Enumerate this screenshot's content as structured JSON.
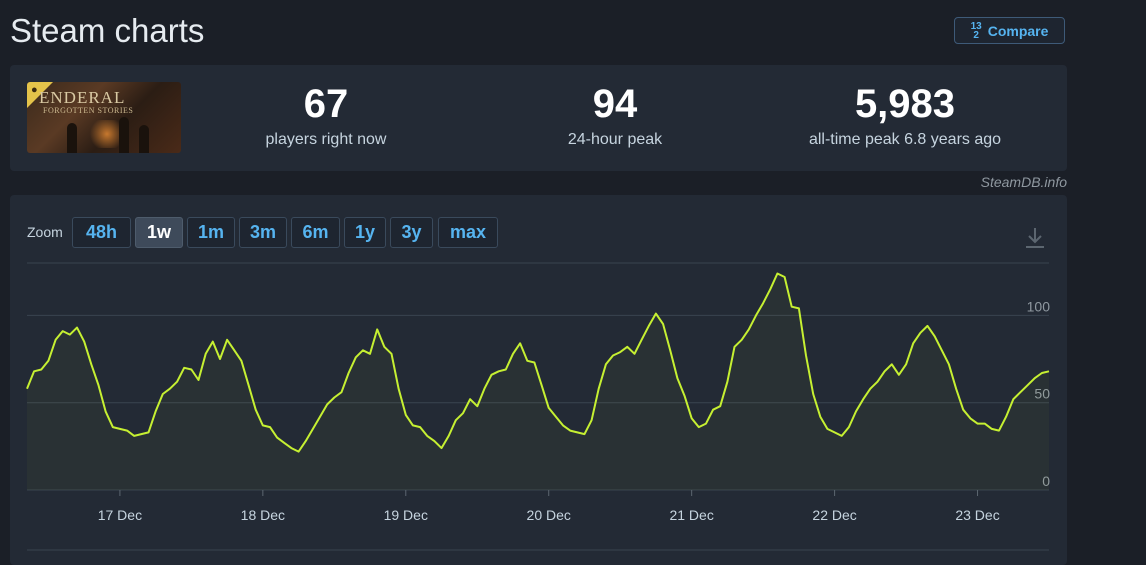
{
  "page_title": "Steam charts",
  "compare": {
    "label": "Compare",
    "icon": "fraction-icon",
    "icon_text_top": "1",
    "icon_text_mid": "3",
    "icon_text_bot": "2"
  },
  "game": {
    "logo_text": "ENDERAL",
    "logo_sub": "FORGOTTEN STORIES"
  },
  "stats": [
    {
      "value": "67",
      "label": "players right now"
    },
    {
      "value": "94",
      "label": "24-hour peak"
    },
    {
      "value": "5,983",
      "label": "all-time peak 6.8 years ago"
    }
  ],
  "watermark": "SteamDB.info",
  "zoom": {
    "label": "Zoom",
    "options": [
      "48h",
      "1w",
      "1m",
      "3m",
      "6m",
      "1y",
      "3y",
      "max"
    ],
    "selected": "1w"
  },
  "colors": {
    "line": "#c6f032",
    "accent": "#56b4f0",
    "background": "#1b1f27",
    "panel": "#232a35"
  },
  "chart_data": {
    "type": "line",
    "title": "",
    "xlabel": "",
    "ylabel": "",
    "ylim": [
      0,
      130
    ],
    "y_ticks": [
      {
        "value": 0,
        "label": "0"
      },
      {
        "value": 50,
        "label": "50"
      },
      {
        "value": 100,
        "label": "100"
      }
    ],
    "x_ticks": [
      {
        "label": "17 Dec",
        "x": 1
      },
      {
        "label": "18 Dec",
        "x": 2
      },
      {
        "label": "19 Dec",
        "x": 3
      },
      {
        "label": "20 Dec",
        "x": 4
      },
      {
        "label": "21 Dec",
        "x": 5
      },
      {
        "label": "22 Dec",
        "x": 6
      },
      {
        "label": "23 Dec",
        "x": 7
      }
    ],
    "xlim": [
      0.35,
      7.5
    ],
    "grid": true,
    "series": [
      {
        "values": [
          [
            0.35,
            58
          ],
          [
            0.4,
            68
          ],
          [
            0.45,
            69
          ],
          [
            0.5,
            74
          ],
          [
            0.55,
            86
          ],
          [
            0.6,
            91
          ],
          [
            0.65,
            89
          ],
          [
            0.7,
            93
          ],
          [
            0.75,
            85
          ],
          [
            0.8,
            72
          ],
          [
            0.85,
            60
          ],
          [
            0.9,
            45
          ],
          [
            0.95,
            36
          ],
          [
            1.0,
            35
          ],
          [
            1.05,
            34
          ],
          [
            1.1,
            31
          ],
          [
            1.15,
            32
          ],
          [
            1.2,
            33
          ],
          [
            1.25,
            45
          ],
          [
            1.3,
            55
          ],
          [
            1.35,
            58
          ],
          [
            1.4,
            62
          ],
          [
            1.45,
            70
          ],
          [
            1.5,
            69
          ],
          [
            1.55,
            63
          ],
          [
            1.6,
            78
          ],
          [
            1.65,
            85
          ],
          [
            1.7,
            75
          ],
          [
            1.75,
            86
          ],
          [
            1.8,
            80
          ],
          [
            1.85,
            74
          ],
          [
            1.9,
            60
          ],
          [
            1.95,
            46
          ],
          [
            2.0,
            37
          ],
          [
            2.05,
            36
          ],
          [
            2.1,
            30
          ],
          [
            2.15,
            27
          ],
          [
            2.2,
            24
          ],
          [
            2.25,
            22
          ],
          [
            2.3,
            28
          ],
          [
            2.35,
            35
          ],
          [
            2.4,
            42
          ],
          [
            2.45,
            49
          ],
          [
            2.5,
            53
          ],
          [
            2.55,
            56
          ],
          [
            2.6,
            67
          ],
          [
            2.65,
            76
          ],
          [
            2.7,
            80
          ],
          [
            2.75,
            78
          ],
          [
            2.8,
            92
          ],
          [
            2.85,
            82
          ],
          [
            2.9,
            78
          ],
          [
            2.95,
            58
          ],
          [
            3.0,
            43
          ],
          [
            3.05,
            37
          ],
          [
            3.1,
            36
          ],
          [
            3.15,
            31
          ],
          [
            3.2,
            28
          ],
          [
            3.25,
            24
          ],
          [
            3.3,
            31
          ],
          [
            3.35,
            40
          ],
          [
            3.4,
            44
          ],
          [
            3.45,
            52
          ],
          [
            3.5,
            48
          ],
          [
            3.55,
            58
          ],
          [
            3.6,
            66
          ],
          [
            3.65,
            68
          ],
          [
            3.7,
            69
          ],
          [
            3.75,
            78
          ],
          [
            3.8,
            84
          ],
          [
            3.85,
            74
          ],
          [
            3.9,
            73
          ],
          [
            3.95,
            60
          ],
          [
            4.0,
            47
          ],
          [
            4.05,
            42
          ],
          [
            4.1,
            37
          ],
          [
            4.15,
            34
          ],
          [
            4.2,
            33
          ],
          [
            4.25,
            32
          ],
          [
            4.3,
            40
          ],
          [
            4.35,
            58
          ],
          [
            4.4,
            72
          ],
          [
            4.45,
            77
          ],
          [
            4.5,
            79
          ],
          [
            4.55,
            82
          ],
          [
            4.6,
            78
          ],
          [
            4.65,
            86
          ],
          [
            4.7,
            94
          ],
          [
            4.75,
            101
          ],
          [
            4.8,
            95
          ],
          [
            4.85,
            80
          ],
          [
            4.9,
            64
          ],
          [
            4.95,
            54
          ],
          [
            5.0,
            41
          ],
          [
            5.05,
            36
          ],
          [
            5.1,
            38
          ],
          [
            5.15,
            46
          ],
          [
            5.2,
            48
          ],
          [
            5.25,
            62
          ],
          [
            5.3,
            82
          ],
          [
            5.35,
            86
          ],
          [
            5.4,
            92
          ],
          [
            5.45,
            100
          ],
          [
            5.5,
            107
          ],
          [
            5.55,
            115
          ],
          [
            5.6,
            124
          ],
          [
            5.65,
            122
          ],
          [
            5.7,
            105
          ],
          [
            5.75,
            104
          ],
          [
            5.8,
            77
          ],
          [
            5.85,
            55
          ],
          [
            5.9,
            42
          ],
          [
            5.95,
            35
          ],
          [
            6.0,
            33
          ],
          [
            6.05,
            31
          ],
          [
            6.1,
            36
          ],
          [
            6.15,
            45
          ],
          [
            6.2,
            52
          ],
          [
            6.25,
            58
          ],
          [
            6.3,
            62
          ],
          [
            6.35,
            68
          ],
          [
            6.4,
            72
          ],
          [
            6.45,
            66
          ],
          [
            6.5,
            72
          ],
          [
            6.55,
            84
          ],
          [
            6.6,
            90
          ],
          [
            6.65,
            94
          ],
          [
            6.7,
            88
          ],
          [
            6.75,
            80
          ],
          [
            6.8,
            72
          ],
          [
            6.85,
            58
          ],
          [
            6.9,
            46
          ],
          [
            6.95,
            41
          ],
          [
            7.0,
            38
          ],
          [
            7.05,
            38
          ],
          [
            7.1,
            35
          ],
          [
            7.15,
            34
          ],
          [
            7.2,
            42
          ],
          [
            7.25,
            52
          ],
          [
            7.3,
            56
          ],
          [
            7.35,
            60
          ],
          [
            7.4,
            64
          ],
          [
            7.45,
            67
          ],
          [
            7.5,
            68
          ]
        ]
      }
    ]
  }
}
